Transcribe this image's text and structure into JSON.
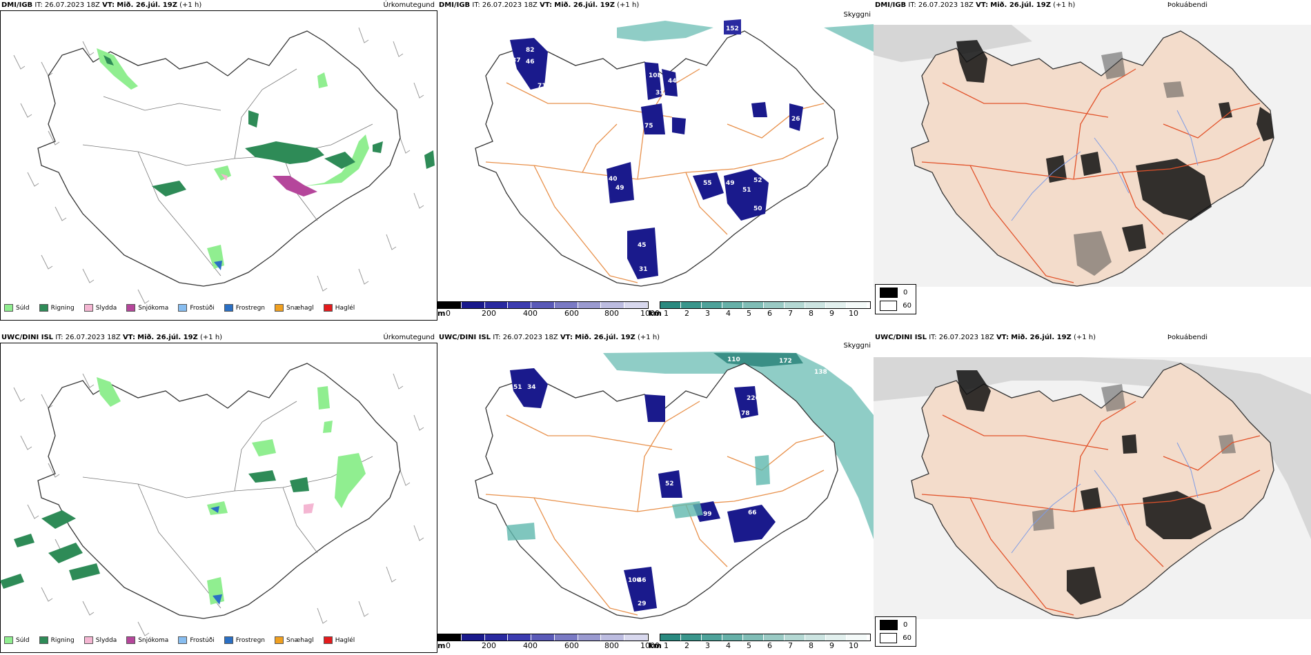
{
  "rows": [
    {
      "model": "DMI/IGB",
      "it_label": "IT:",
      "it_value": "26.07.2023 18Z",
      "vt_label": "VT:",
      "vt_value": "Mið. 26.júl. 19Z",
      "lead": "(+1 h)"
    },
    {
      "model": "UWC/DINI ISL",
      "it_label": "IT:",
      "it_value": "26.07.2023 18Z",
      "vt_label": "VT:",
      "vt_value": "Mið. 26.júl. 19Z",
      "lead": "(+1 h)"
    }
  ],
  "panel_titles": {
    "precip": "Úrkomutegund",
    "visibility": "Skyggni",
    "fog": "Þokuábendi"
  },
  "precip_legend": [
    {
      "label": "Súld",
      "color": "#90ee90"
    },
    {
      "label": "Rigning",
      "color": "#2e8b57"
    },
    {
      "label": "Slydda",
      "color": "#f4b6d2"
    },
    {
      "label": "Snjókoma",
      "color": "#b5469b"
    },
    {
      "label": "Frostúði",
      "color": "#87bdf0"
    },
    {
      "label": "Frostregn",
      "color": "#2a6fc4"
    },
    {
      "label": "Snæhagl",
      "color": "#f0a020"
    },
    {
      "label": "Haglél",
      "color": "#e41a1c"
    }
  ],
  "visibility_scale": {
    "m_unit": "m",
    "m_ticks": [
      "0",
      "200",
      "400",
      "600",
      "800",
      "1000"
    ],
    "m_colors": [
      "#000000",
      "#1a1a8c",
      "#2a2aa0",
      "#3c3cb0",
      "#5a5ab8",
      "#7a7ac4",
      "#9a9ad0",
      "#bcbce0",
      "#d8d8ee"
    ],
    "km_unit": "km",
    "km_ticks": [
      "1",
      "2",
      "3",
      "4",
      "5",
      "6",
      "7",
      "8",
      "9",
      "10"
    ],
    "km_colors": [
      "#2a8a80",
      "#3a968c",
      "#4ea29a",
      "#66b0a8",
      "#80bdb6",
      "#9acac4",
      "#b4d8d3",
      "#cce4e1",
      "#e2f0ee",
      "#f4faf9"
    ]
  },
  "fog_legend": [
    {
      "value": "0",
      "color": "#000000"
    },
    {
      "value": "60",
      "color": "#ffffff"
    }
  ],
  "visibility_labels_top": [
    "152",
    "82",
    "46",
    "37",
    "71",
    "108",
    "44",
    "33",
    "25",
    "60",
    "75",
    "26",
    "68",
    "49",
    "40",
    "55",
    "49",
    "51",
    "52",
    "50",
    "45",
    "31"
  ],
  "visibility_labels_bottom": [
    "110",
    "172",
    "138",
    "51",
    "34",
    "52",
    "78",
    "226",
    "52",
    "99",
    "66",
    "46",
    "29",
    "100"
  ]
}
